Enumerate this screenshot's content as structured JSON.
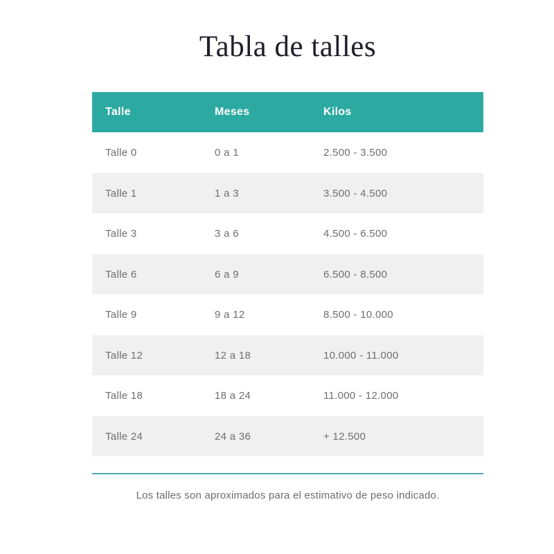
{
  "page": {
    "title": "Tabla de talles",
    "note": "Los talles son aproximados para el estimativo de peso indicado."
  },
  "table": {
    "headers": [
      "Talle",
      "Meses",
      "Kilos"
    ],
    "rows": [
      [
        "Talle 0",
        "0 a 1",
        "2.500 - 3.500"
      ],
      [
        "Talle 1",
        "1 a 3",
        "3.500 - 4.500"
      ],
      [
        "Talle 3",
        "3 a 6",
        "4.500 - 6.500"
      ],
      [
        "Talle 6",
        "6 a 9",
        "6.500 - 8.500"
      ],
      [
        "Talle 9",
        "9 a 12",
        "8.500 - 10.000"
      ],
      [
        "Talle 12",
        "12 a 18",
        "10.000 - 11.000"
      ],
      [
        "Talle 18",
        "18 a 24",
        "11.000 - 12.000"
      ],
      [
        "Talle 24",
        "24 a 36",
        "+ 12.500"
      ]
    ]
  },
  "colors": {
    "header_bg": "#2caaa2",
    "alt_row_bg": "#f0f0f0",
    "divider": "#4aa9ac",
    "body_text": "#6e6e6e",
    "title_text": "#20202a"
  }
}
